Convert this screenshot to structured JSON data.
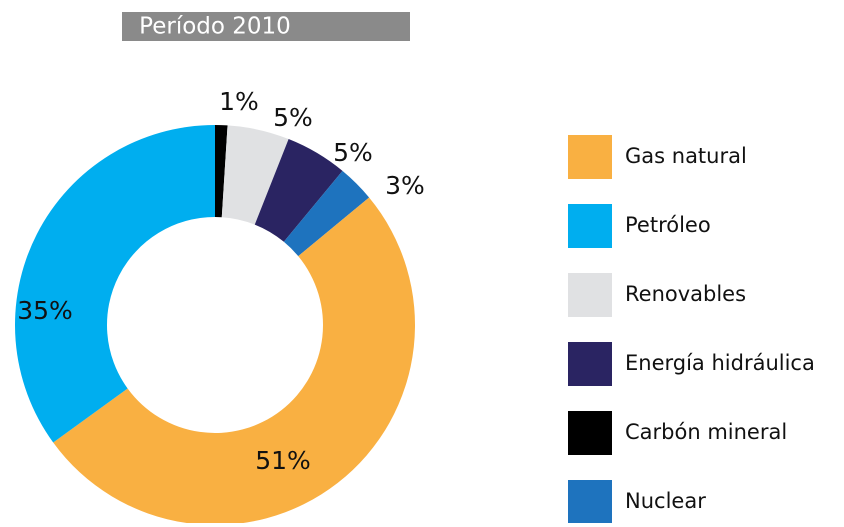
{
  "chart_data": {
    "type": "pie",
    "title": "Período 2010",
    "categories": [
      "Gas natural",
      "Petróleo",
      "Renovables",
      "Energía hidráulica",
      "Carbón mineral",
      "Nuclear"
    ],
    "values": [
      51,
      35,
      5,
      5,
      1,
      3
    ],
    "value_labels": [
      "51%",
      "35%",
      "5%",
      "5%",
      "1%",
      "3%"
    ],
    "colors": [
      "#f9b042",
      "#00aeef",
      "#e0e1e3",
      "#2a2462",
      "#000000",
      "#1e73be"
    ]
  }
}
